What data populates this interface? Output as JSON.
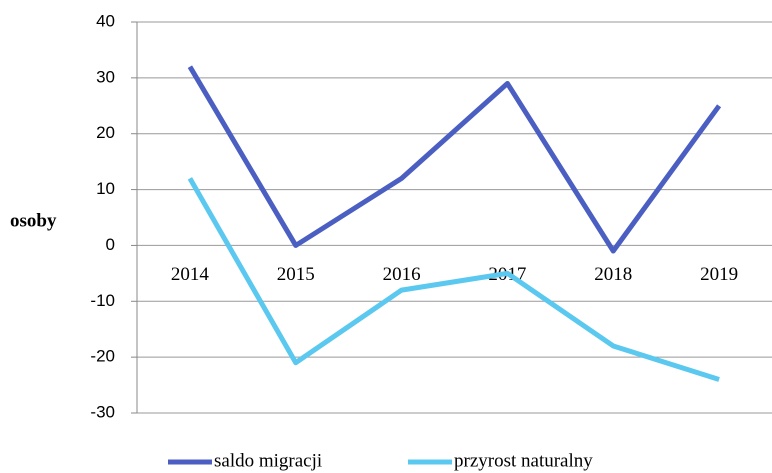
{
  "chart_data": {
    "type": "line",
    "y_label": "osoby",
    "categories": [
      "2014",
      "2015",
      "2016",
      "2017",
      "2018",
      "2019"
    ],
    "series": [
      {
        "name": "saldo migracji",
        "color": "#4a5fc1",
        "values": [
          32,
          0,
          12,
          29,
          -1,
          25
        ]
      },
      {
        "name": "przyrost naturalny",
        "color": "#5bc8ef",
        "values": [
          12,
          -21,
          -8,
          -5,
          -18,
          -24
        ]
      }
    ],
    "ylim": [
      -30,
      40
    ],
    "yticks": [
      -30,
      -20,
      -10,
      0,
      10,
      20,
      30,
      40
    ],
    "grid": true
  }
}
